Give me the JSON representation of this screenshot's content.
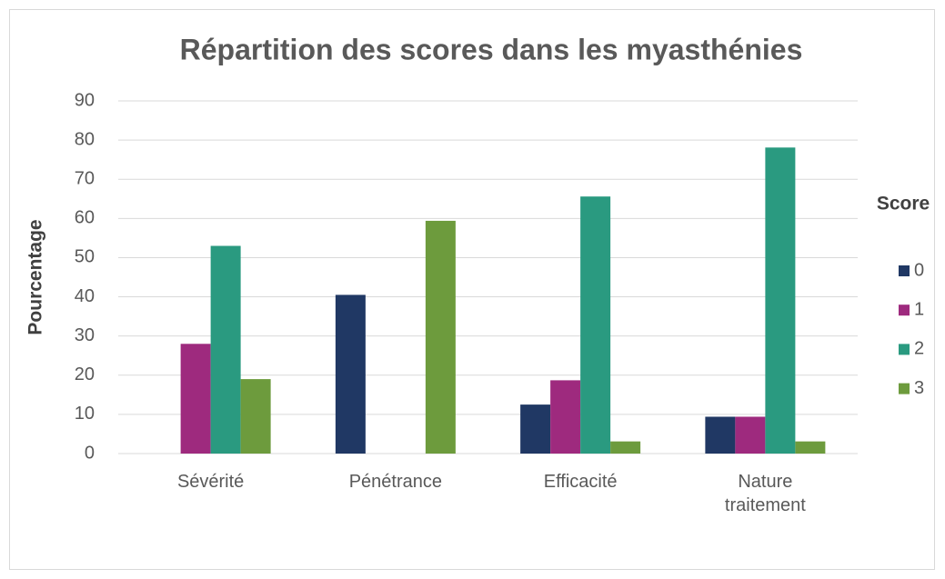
{
  "chart_data": {
    "type": "bar",
    "title": "Répartition des scores dans les myasthénies",
    "y_label": "Pourcentage",
    "legend_title": "Score",
    "categories": [
      "Sévérité",
      "Pénétrance",
      "Efficacité",
      "Nature traitement"
    ],
    "series": [
      {
        "name": "0",
        "color": "#203864",
        "values": [
          0,
          40.5,
          12.5,
          9.4
        ]
      },
      {
        "name": "1",
        "color": "#9e2a7e",
        "values": [
          28,
          0,
          18.7,
          9.4
        ]
      },
      {
        "name": "2",
        "color": "#2a9a80",
        "values": [
          53,
          0,
          65.6,
          78.1
        ]
      },
      {
        "name": "3",
        "color": "#6d9b3d",
        "values": [
          19,
          59.4,
          3.1,
          3.1
        ]
      }
    ],
    "ylim": [
      0,
      90
    ],
    "yticks": [
      0,
      10,
      20,
      30,
      40,
      50,
      60,
      70,
      80,
      90
    ],
    "grid": true,
    "legend": "right"
  }
}
